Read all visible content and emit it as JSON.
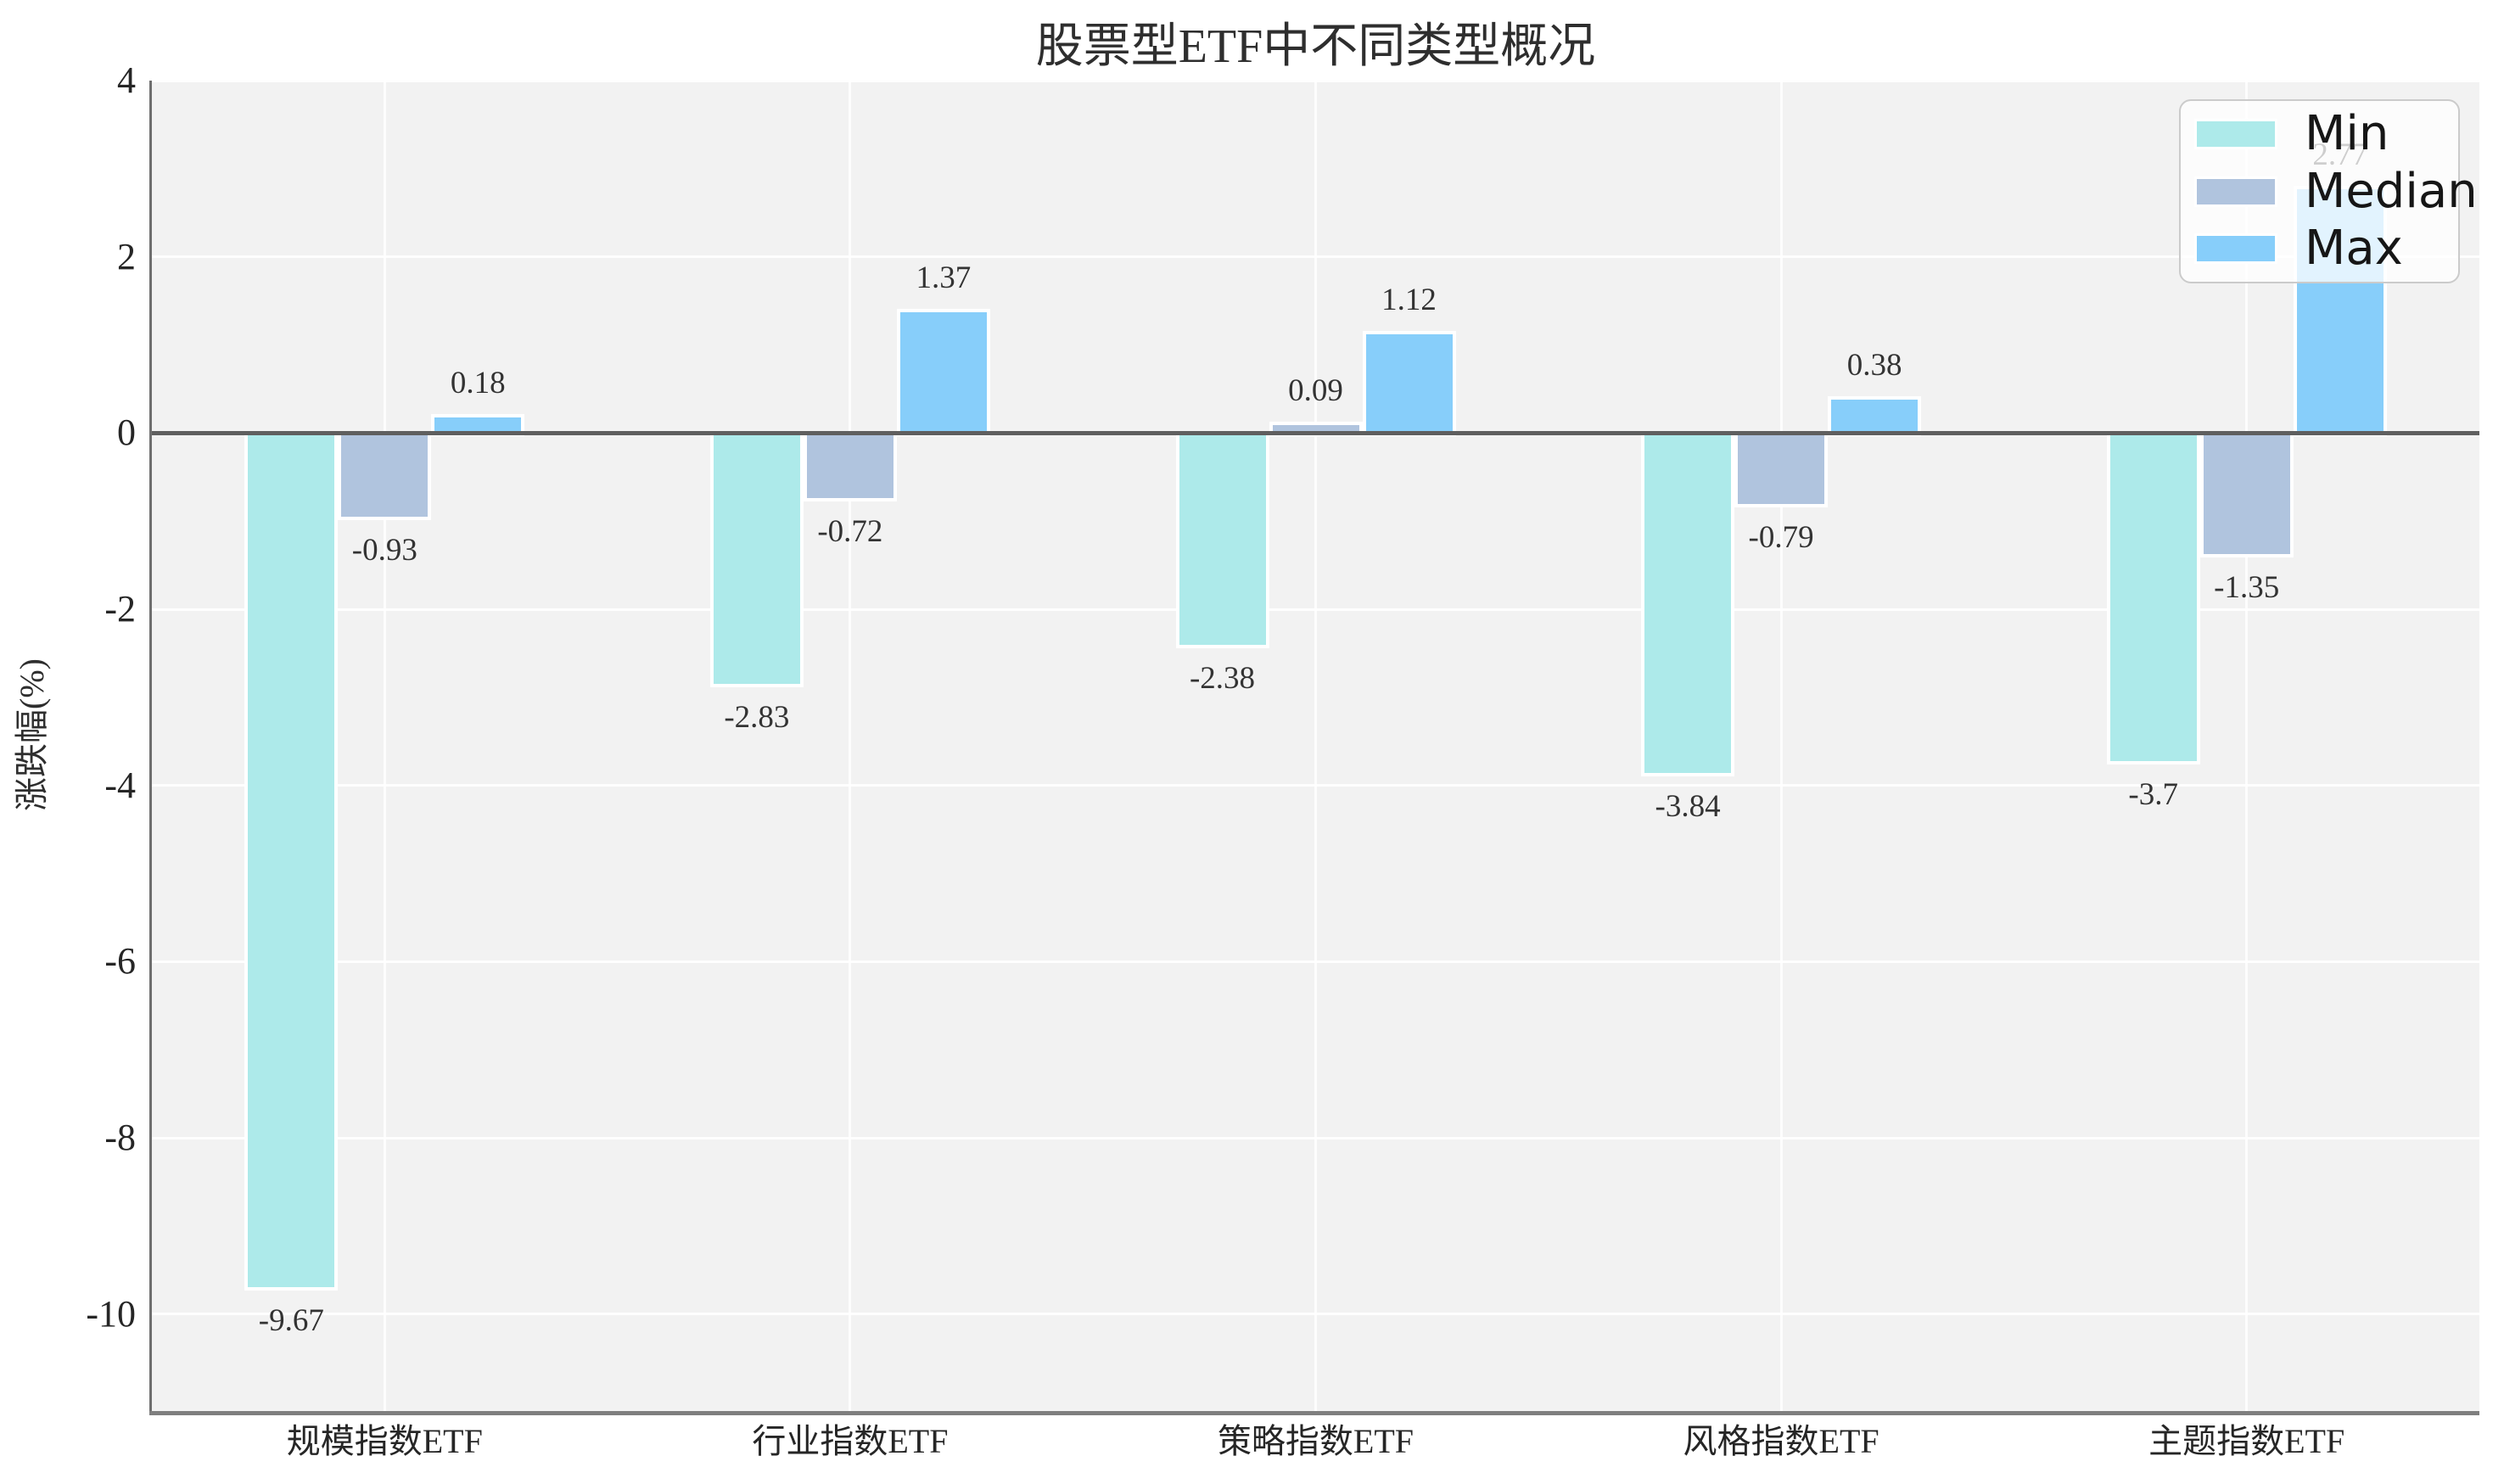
{
  "chart_data": {
    "type": "bar",
    "title": "股票型ETF中不同类型概况",
    "ylabel": "涨跌幅(%)",
    "xlabel": "",
    "categories": [
      "规模指数ETF",
      "行业指数ETF",
      "策略指数ETF",
      "风格指数ETF",
      "主题指数ETF"
    ],
    "series": [
      {
        "name": "Min",
        "color": "#ADEAEA",
        "values": [
          -9.67,
          -2.83,
          -2.38,
          -3.84,
          -3.7
        ]
      },
      {
        "name": "Median",
        "color": "#B0C4DE",
        "values": [
          -0.93,
          -0.72,
          0.09,
          -0.79,
          -1.35
        ]
      },
      {
        "name": "Max",
        "color": "#87CEFA",
        "values": [
          0.18,
          1.37,
          1.12,
          0.38,
          2.77
        ]
      }
    ],
    "bar_value_labels": [
      "-9.67",
      "-0.93",
      "0.18",
      "-2.83",
      "-0.72",
      "1.37",
      "-2.38",
      "0.09",
      "1.12",
      "-3.84",
      "-0.79",
      "0.38",
      "-3.7",
      "-1.35",
      "2.77"
    ],
    "yticks": [
      4,
      2,
      0,
      -2,
      -4,
      -6,
      -8,
      -10
    ],
    "ylim": [
      -11.1,
      4
    ],
    "grid": true,
    "legend": {
      "position": "upper right",
      "labels": [
        "Min",
        "Median",
        "Max"
      ]
    }
  },
  "style": {
    "plot_bg": "#f2f2f2",
    "grid_color": "#ffffff",
    "zero_line_color": "#5f5f5f",
    "left_spine_color": "#6f6f6f",
    "bottom_spine_color": "#7f7f7f",
    "series_colors": {
      "min": "#ADEAEA",
      "median": "#B0C4DE",
      "max": "#87CEFA"
    }
  }
}
